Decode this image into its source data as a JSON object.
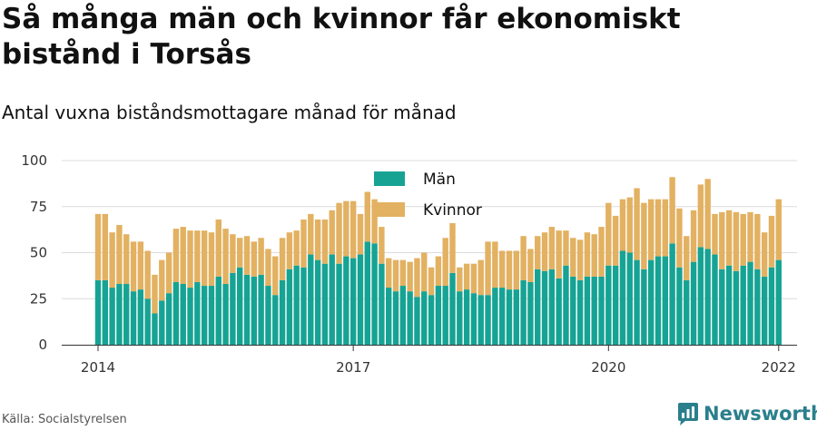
{
  "header": {
    "title": "Så många män och kvinnor får ekonomiskt bistånd i Torsås",
    "subtitle": "Antal vuxna biståndsmottagare månad för månad"
  },
  "footer": {
    "source": "Källa: Socialstyrelsen",
    "brand": "Newsworthy"
  },
  "colors": {
    "men": "#16a394",
    "women": "#e2b161",
    "grid": "#dcdcdc",
    "axis": "#333333",
    "brand": "#2a7f8c"
  },
  "chart_data": {
    "type": "bar",
    "stacked": true,
    "x_start": "2014-01",
    "x_tick_labels": [
      "2014",
      "2017",
      "2020",
      "2022"
    ],
    "y_ticks": [
      0,
      25,
      50,
      75,
      100
    ],
    "ylim": [
      0,
      100
    ],
    "grid": true,
    "legend_placement": "top-center",
    "legend": [
      "Män",
      "Kvinnor"
    ],
    "categories": [
      "2014-01",
      "2014-02",
      "2014-03",
      "2014-04",
      "2014-05",
      "2014-06",
      "2014-07",
      "2014-08",
      "2014-09",
      "2014-10",
      "2014-11",
      "2014-12",
      "2015-01",
      "2015-02",
      "2015-03",
      "2015-04",
      "2015-05",
      "2015-06",
      "2015-07",
      "2015-08",
      "2015-09",
      "2015-10",
      "2015-11",
      "2015-12",
      "2016-01",
      "2016-02",
      "2016-03",
      "2016-04",
      "2016-05",
      "2016-06",
      "2016-07",
      "2016-08",
      "2016-09",
      "2016-10",
      "2016-11",
      "2016-12",
      "2017-01",
      "2017-02",
      "2017-03",
      "2017-04",
      "2017-05",
      "2017-06",
      "2017-07",
      "2017-08",
      "2017-09",
      "2017-10",
      "2017-11",
      "2017-12",
      "2018-01",
      "2018-02",
      "2018-03",
      "2018-04",
      "2018-05",
      "2018-06",
      "2018-07",
      "2018-08",
      "2018-09",
      "2018-10",
      "2018-11",
      "2018-12",
      "2019-01",
      "2019-02",
      "2019-03",
      "2019-04",
      "2019-05",
      "2019-06",
      "2019-07",
      "2019-08",
      "2019-09",
      "2019-10",
      "2019-11",
      "2019-12",
      "2020-01",
      "2020-02",
      "2020-03",
      "2020-04",
      "2020-05",
      "2020-06",
      "2020-07",
      "2020-08",
      "2020-09",
      "2020-10",
      "2020-11",
      "2020-12",
      "2021-01",
      "2021-02",
      "2021-03",
      "2021-04",
      "2021-05",
      "2021-06",
      "2021-07",
      "2021-08",
      "2021-09",
      "2021-10",
      "2021-11",
      "2021-12",
      "2022-01"
    ],
    "series": [
      {
        "name": "Män",
        "values": [
          35,
          35,
          31,
          33,
          33,
          29,
          30,
          25,
          17,
          24,
          28,
          34,
          33,
          31,
          34,
          32,
          32,
          37,
          33,
          39,
          42,
          38,
          37,
          38,
          32,
          27,
          35,
          41,
          43,
          42,
          49,
          46,
          44,
          49,
          44,
          48,
          47,
          49,
          56,
          55,
          44,
          31,
          29,
          32,
          29,
          26,
          29,
          27,
          32,
          32,
          39,
          29,
          30,
          28,
          27,
          27,
          31,
          31,
          30,
          30,
          35,
          34,
          41,
          40,
          41,
          36,
          43,
          37,
          35,
          37,
          37,
          37,
          43,
          43,
          51,
          50,
          46,
          41,
          46,
          48,
          48,
          55,
          42,
          35,
          45,
          53,
          52,
          49,
          41,
          43,
          40,
          43,
          45,
          41,
          37,
          42,
          46
        ]
      },
      {
        "name": "Kvinnor",
        "values": [
          36,
          36,
          30,
          32,
          27,
          27,
          26,
          26,
          21,
          22,
          22,
          29,
          31,
          31,
          28,
          30,
          29,
          31,
          30,
          21,
          16,
          21,
          19,
          20,
          20,
          21,
          23,
          20,
          19,
          26,
          22,
          22,
          24,
          24,
          33,
          30,
          31,
          22,
          27,
          24,
          20,
          16,
          17,
          14,
          16,
          21,
          21,
          15,
          16,
          26,
          27,
          13,
          14,
          16,
          19,
          29,
          25,
          20,
          21,
          21,
          24,
          18,
          18,
          21,
          23,
          26,
          19,
          21,
          22,
          24,
          23,
          27,
          34,
          27,
          28,
          30,
          39,
          36,
          33,
          31,
          31,
          36,
          32,
          24,
          28,
          34,
          38,
          22,
          31,
          30,
          32,
          28,
          27,
          30,
          24,
          28,
          33
        ]
      }
    ]
  }
}
